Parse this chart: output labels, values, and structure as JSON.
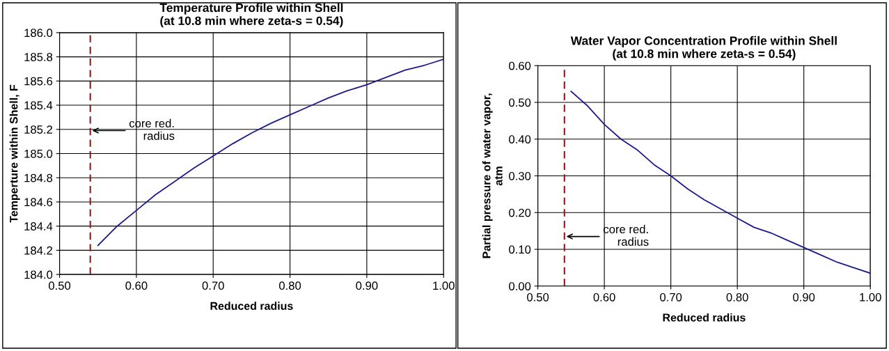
{
  "chart_data": [
    {
      "type": "line",
      "title": "Temperature Profile within Shell\n(at 10.8 min where zeta-s = 0.54)",
      "xlabel": "Reduced radius",
      "ylabel": "Temperture within Shell, F",
      "x": [
        0.55,
        0.575,
        0.6,
        0.625,
        0.65,
        0.675,
        0.7,
        0.725,
        0.75,
        0.775,
        0.8,
        0.825,
        0.85,
        0.875,
        0.9,
        0.925,
        0.95,
        0.975,
        1.0
      ],
      "series": [
        {
          "color": "#1a1a8c",
          "values": [
            184.24,
            184.4,
            184.53,
            184.66,
            184.77,
            184.88,
            184.98,
            185.08,
            185.17,
            185.25,
            185.32,
            185.39,
            185.46,
            185.52,
            185.57,
            185.63,
            185.69,
            185.73,
            185.78
          ]
        }
      ],
      "xlim": [
        0.5,
        1.0
      ],
      "xticks": [
        {
          "value": 0.5,
          "label": "0.50"
        },
        {
          "value": 0.6,
          "label": "0.60"
        },
        {
          "value": 0.7,
          "label": "0.70"
        },
        {
          "value": 0.8,
          "label": "0.80"
        },
        {
          "value": 0.9,
          "label": "0.90"
        },
        {
          "value": 1.0,
          "label": "1.00"
        }
      ],
      "ylim": [
        184.0,
        186.0
      ],
      "yticks": [
        {
          "value": 184.0,
          "label": "184.0"
        },
        {
          "value": 184.2,
          "label": "184.2"
        },
        {
          "value": 184.4,
          "label": "184.4"
        },
        {
          "value": 184.6,
          "label": "184.6"
        },
        {
          "value": 184.8,
          "label": "184.8"
        },
        {
          "value": 185.0,
          "label": "185.0"
        },
        {
          "value": 185.2,
          "label": "185.2"
        },
        {
          "value": 185.4,
          "label": "185.4"
        },
        {
          "value": 185.6,
          "label": "185.6"
        },
        {
          "value": 185.8,
          "label": "185.8"
        },
        {
          "value": 186.0,
          "label": "186.0"
        }
      ],
      "ref_lines": [
        {
          "axis": "x",
          "value": 0.54,
          "color": "#8b1a1a",
          "line_style": "dashed"
        }
      ],
      "annotations": [
        {
          "text": "core red.\nradius",
          "x": 0.54,
          "y": 185.19
        }
      ],
      "grid": true,
      "marker": "none",
      "line_style": "solid"
    },
    {
      "type": "line",
      "title": "Water Vapor Concentration Profile within Shell\n(at 10.8 min where zeta-s = 0.54)",
      "xlabel": "Reduced radius",
      "ylabel": "Partial pressure of water vapor,\natm",
      "x": [
        0.55,
        0.575,
        0.6,
        0.625,
        0.65,
        0.675,
        0.7,
        0.725,
        0.75,
        0.775,
        0.8,
        0.825,
        0.85,
        0.875,
        0.9,
        0.925,
        0.95,
        0.975,
        1.0
      ],
      "series": [
        {
          "color": "#1a1a8c",
          "values": [
            0.53,
            0.49,
            0.44,
            0.4,
            0.37,
            0.33,
            0.3,
            0.265,
            0.235,
            0.21,
            0.185,
            0.16,
            0.145,
            0.125,
            0.105,
            0.085,
            0.065,
            0.05,
            0.035
          ]
        }
      ],
      "xlim": [
        0.5,
        1.0
      ],
      "xticks": [
        {
          "value": 0.5,
          "label": "0.50"
        },
        {
          "value": 0.6,
          "label": "0.60"
        },
        {
          "value": 0.7,
          "label": "0.70"
        },
        {
          "value": 0.8,
          "label": "0.80"
        },
        {
          "value": 0.9,
          "label": "0.90"
        },
        {
          "value": 1.0,
          "label": "1.00"
        }
      ],
      "ylim": [
        0.0,
        0.6
      ],
      "yticks": [
        {
          "value": 0.0,
          "label": "0.00"
        },
        {
          "value": 0.1,
          "label": "0.10"
        },
        {
          "value": 0.2,
          "label": "0.20"
        },
        {
          "value": 0.3,
          "label": "0.30"
        },
        {
          "value": 0.4,
          "label": "0.40"
        },
        {
          "value": 0.5,
          "label": "0.50"
        },
        {
          "value": 0.6,
          "label": "0.60"
        }
      ],
      "ref_lines": [
        {
          "axis": "x",
          "value": 0.54,
          "color": "#8b1a1a",
          "line_style": "dashed"
        }
      ],
      "annotations": [
        {
          "text": "core red.\nradius",
          "x": 0.54,
          "y": 0.135
        }
      ],
      "grid": true,
      "marker": "none",
      "line_style": "solid"
    }
  ]
}
